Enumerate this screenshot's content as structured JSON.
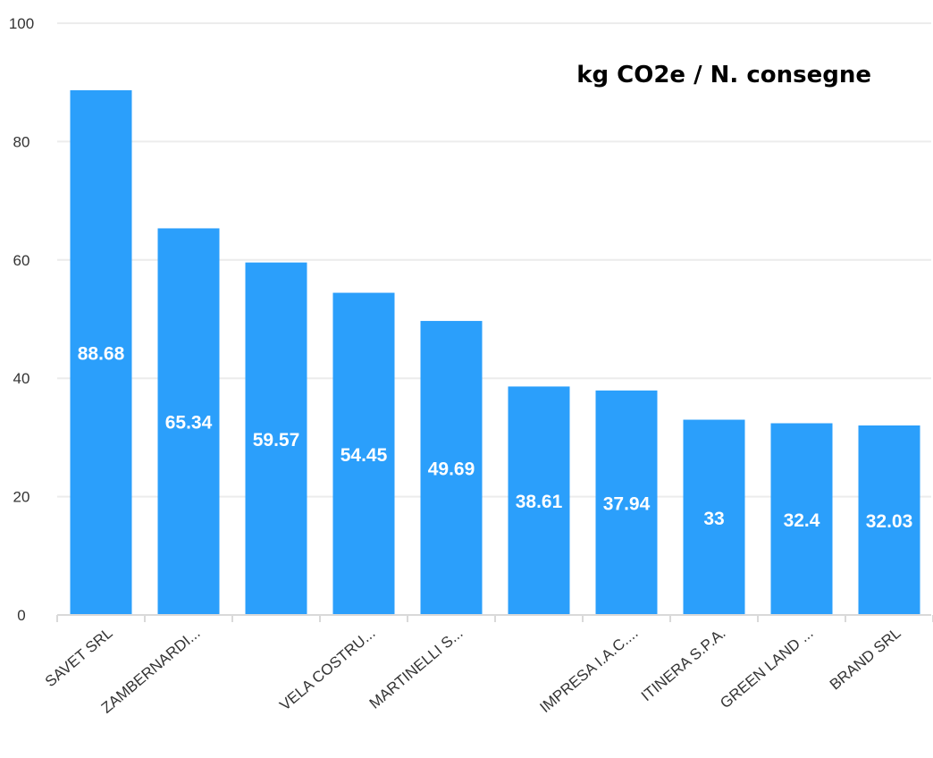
{
  "chart_data": {
    "type": "bar",
    "title": "kg CO2e / N. consegne",
    "categories": [
      "SAVET SRL",
      "ZAMBERNARDI...",
      "",
      "VELA COSTRU...",
      "MARTINELLI S...",
      "",
      "IMPRESA I.A.C....",
      "ITINERA S.P.A.",
      "GREEN LAND ...",
      "BRAND SRL"
    ],
    "values": [
      88.68,
      65.34,
      59.57,
      54.45,
      49.69,
      38.61,
      37.94,
      33,
      32.4,
      32.03
    ],
    "value_labels": [
      "88.68",
      "65.34",
      "59.57",
      "54.45",
      "49.69",
      "38.61",
      "37.94",
      "33",
      "32.4",
      "32.03"
    ],
    "y_ticks": [
      "0",
      "20",
      "40",
      "60",
      "80",
      "100"
    ],
    "ylim": [
      0,
      100
    ],
    "xlabel": "",
    "ylabel": "",
    "grid": true,
    "legend": "none",
    "colors": {
      "bar": "#2b9ffb",
      "label": "#ffffff",
      "grid": "#ececec"
    }
  }
}
